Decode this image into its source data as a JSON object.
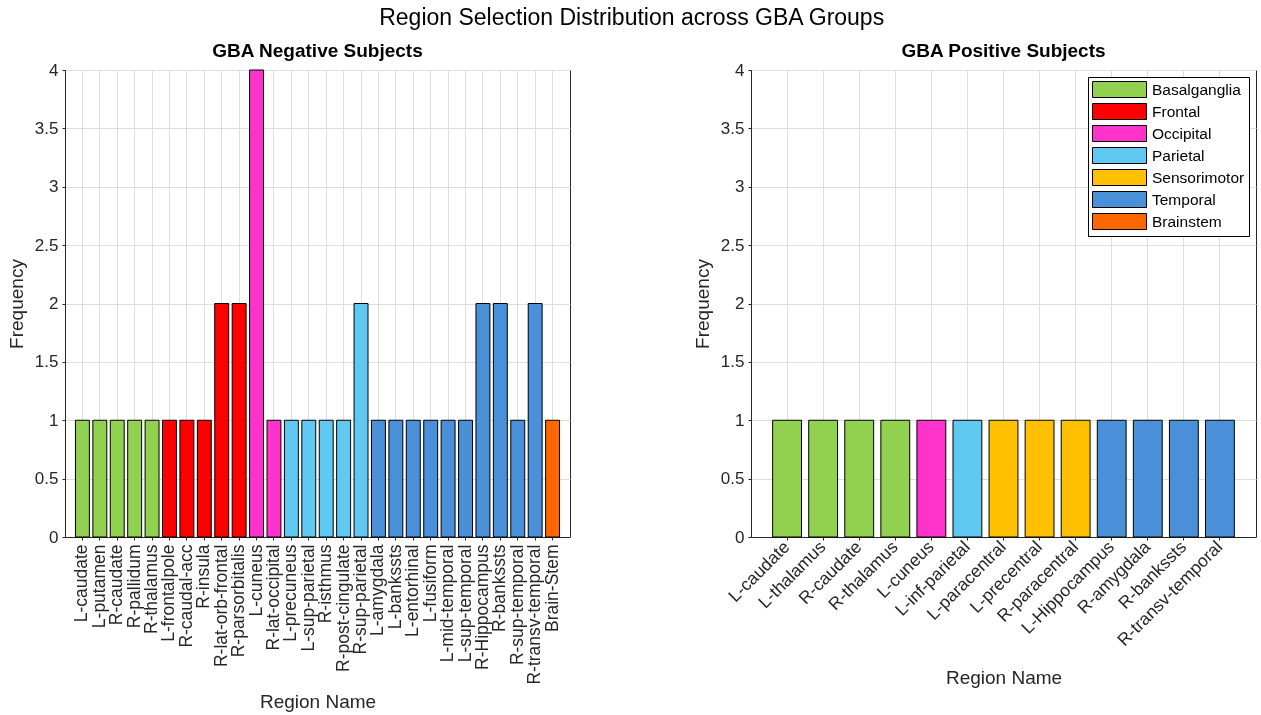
{
  "chart_data": [
    {
      "type": "other",
      "title": "Region Selection Distribution across GBA Groups"
    },
    {
      "type": "bar",
      "title": "GBA Negative Subjects",
      "xlabel": "Region Name",
      "ylabel": "Frequency",
      "categories": [
        "L-caudate",
        "L-putamen",
        "R-caudate",
        "R-pallidum",
        "R-thalamus",
        "L-frontalpole",
        "R-caudal-acc",
        "R-insula",
        "R-lat-orb-frontal",
        "R-parsorbitalis",
        "L-cuneus",
        "R-lat-occipital",
        "L-precuneus",
        "L-sup-parietal",
        "R-isthmus",
        "R-post-cingulate",
        "R-sup-parietal",
        "L-amygdala",
        "L-bankssts",
        "L-entorhinal",
        "L-fusiform",
        "L-mid-temporal",
        "L-sup-temporal",
        "R-Hippocampus",
        "R-bankssts",
        "R-sup-temporal",
        "R-transv-temporal",
        "Brain-Stem"
      ],
      "values": [
        1,
        1,
        1,
        1,
        1,
        1,
        1,
        1,
        2,
        2,
        4,
        1,
        1,
        1,
        1,
        1,
        2,
        1,
        1,
        1,
        1,
        1,
        1,
        2,
        2,
        1,
        2,
        1
      ],
      "colors": [
        "#92d050",
        "#92d050",
        "#92d050",
        "#92d050",
        "#92d050",
        "#ff0000",
        "#ff0000",
        "#ff0000",
        "#ff0000",
        "#ff0000",
        "#ff33cc",
        "#ff33cc",
        "#5fc9f1",
        "#5fc9f1",
        "#5fc9f1",
        "#5fc9f1",
        "#5fc9f1",
        "#4a90d9",
        "#4a90d9",
        "#4a90d9",
        "#4a90d9",
        "#4a90d9",
        "#4a90d9",
        "#4a90d9",
        "#4a90d9",
        "#4a90d9",
        "#4a90d9",
        "#ff6600"
      ],
      "ylim": [
        0,
        4
      ],
      "yticks": [
        0,
        0.5,
        1,
        1.5,
        2,
        2.5,
        3,
        3.5,
        4
      ],
      "grid": true
    },
    {
      "type": "bar",
      "title": "GBA Positive Subjects",
      "xlabel": "Region Name",
      "ylabel": "Frequency",
      "categories": [
        "L-caudate",
        "L-thalamus",
        "R-caudate",
        "R-thalamus",
        "L-cuneus",
        "L-inf-parietal",
        "L-paracentral",
        "L-precentral",
        "R-paracentral",
        "L-Hippocampus",
        "R-amygdala",
        "R-bankssts",
        "R-transv-temporal"
      ],
      "series": [
        {
          "name": "Basalganglia",
          "color": "#92d050",
          "values": [
            1,
            1,
            1,
            1,
            null,
            null,
            null,
            null,
            null,
            null,
            null,
            null,
            null
          ]
        },
        {
          "name": "Frontal",
          "color": "#ff0000",
          "values": [
            null,
            null,
            null,
            null,
            null,
            null,
            null,
            null,
            null,
            null,
            null,
            null,
            null
          ]
        },
        {
          "name": "Occipital",
          "color": "#ff33cc",
          "values": [
            null,
            null,
            null,
            null,
            1,
            null,
            null,
            null,
            null,
            null,
            null,
            null,
            null
          ]
        },
        {
          "name": "Parietal",
          "color": "#5fc9f1",
          "values": [
            null,
            null,
            null,
            null,
            null,
            1,
            null,
            null,
            null,
            null,
            null,
            null,
            null
          ]
        },
        {
          "name": "Sensorimotor",
          "color": "#ffc000",
          "values": [
            null,
            null,
            null,
            null,
            null,
            null,
            1,
            1,
            1,
            null,
            null,
            null,
            null
          ]
        },
        {
          "name": "Temporal",
          "color": "#4a90d9",
          "values": [
            null,
            null,
            null,
            null,
            null,
            null,
            null,
            null,
            null,
            1,
            1,
            1,
            1
          ]
        },
        {
          "name": "Brainstem",
          "color": "#ff6600",
          "values": [
            null,
            null,
            null,
            null,
            null,
            null,
            null,
            null,
            null,
            null,
            null,
            null,
            null
          ]
        }
      ],
      "ylim": [
        0,
        4
      ],
      "yticks": [
        0,
        0.5,
        1,
        1.5,
        2,
        2.5,
        3,
        3.5,
        4
      ],
      "grid": true,
      "legend": "top right"
    }
  ]
}
